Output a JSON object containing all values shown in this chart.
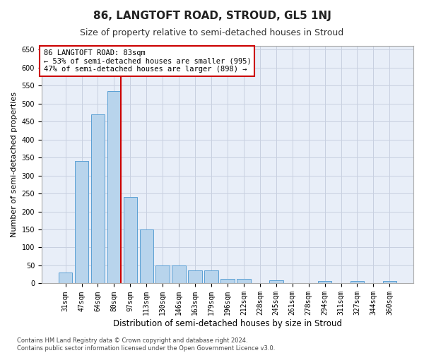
{
  "title": "86, LANGTOFT ROAD, STROUD, GL5 1NJ",
  "subtitle": "Size of property relative to semi-detached houses in Stroud",
  "xlabel": "Distribution of semi-detached houses by size in Stroud",
  "ylabel": "Number of semi-detached properties",
  "categories": [
    "31sqm",
    "47sqm",
    "64sqm",
    "80sqm",
    "97sqm",
    "113sqm",
    "130sqm",
    "146sqm",
    "163sqm",
    "179sqm",
    "196sqm",
    "212sqm",
    "228sqm",
    "245sqm",
    "261sqm",
    "278sqm",
    "294sqm",
    "311sqm",
    "327sqm",
    "344sqm",
    "360sqm"
  ],
  "values": [
    30,
    340,
    470,
    535,
    240,
    150,
    50,
    50,
    37,
    36,
    13,
    13,
    0,
    8,
    0,
    0,
    6,
    0,
    6,
    0,
    6
  ],
  "bar_color": "#b8d4ec",
  "bar_edge_color": "#5a9fd4",
  "background_color": "#e8eef8",
  "grid_color": "#c8d0e0",
  "annotation_box_text": "86 LANGTOFT ROAD: 83sqm\n← 53% of semi-detached houses are smaller (995)\n47% of semi-detached houses are larger (898) →",
  "annotation_box_color": "#ffffff",
  "annotation_box_edge_color": "#cc0000",
  "marker_line_color": "#cc0000",
  "marker_bar_index": 3,
  "ylim": [
    0,
    660
  ],
  "yticks": [
    0,
    50,
    100,
    150,
    200,
    250,
    300,
    350,
    400,
    450,
    500,
    550,
    600,
    650
  ],
  "footer_text": "Contains HM Land Registry data © Crown copyright and database right 2024.\nContains public sector information licensed under the Open Government Licence v3.0.",
  "title_fontsize": 11,
  "subtitle_fontsize": 9,
  "xlabel_fontsize": 8.5,
  "ylabel_fontsize": 8,
  "tick_fontsize": 7,
  "annotation_fontsize": 7.5,
  "footer_fontsize": 6
}
